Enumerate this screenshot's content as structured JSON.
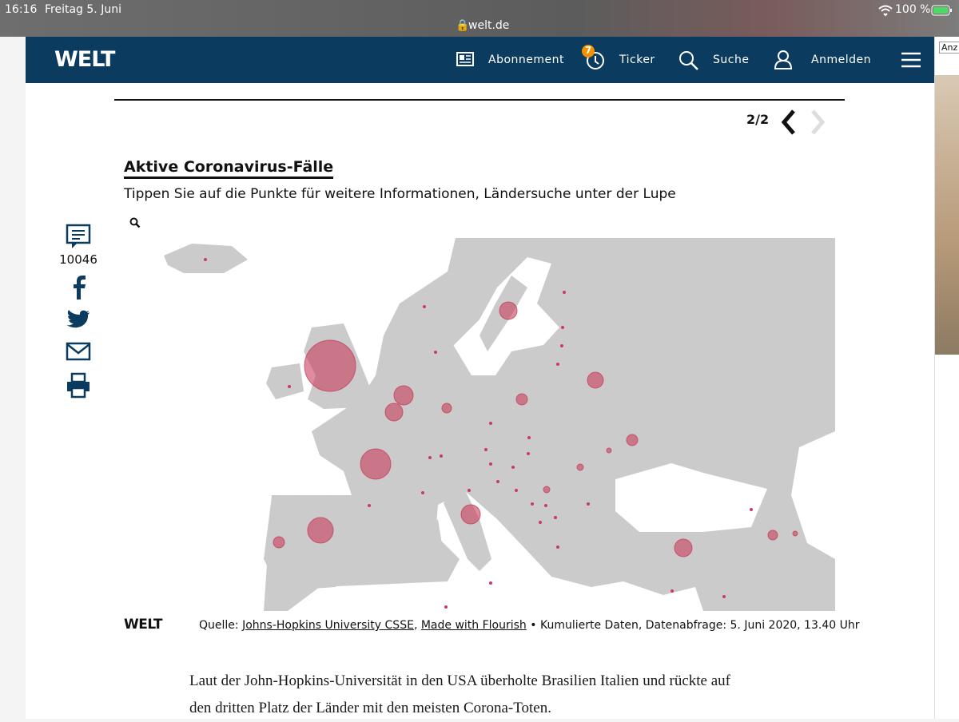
{
  "status_bar": {
    "time": "16:16",
    "date": "Freitag 5. Juni",
    "url": "welt.de",
    "battery": "100 %"
  },
  "nav": {
    "logo": "WELT",
    "items": [
      "Abonnement",
      "Ticker",
      "Suche",
      "Anmelden"
    ],
    "ticker_badge": "7"
  },
  "pager": "2/2",
  "social": {
    "comment_count": 10046
  },
  "chart": {
    "title": "Aktive Coronavirus-Fälle",
    "subtitle": "Tippen Sie auf die Punkte für weitere Informationen, Ländersuche unter der Lupe",
    "logo": "WELT",
    "source_prefix": "Quelle:",
    "source_links": [
      "Johns-Hopkins University CSSE",
      "Made with Flourish"
    ],
    "source_separator": ",",
    "source_note": "• Kumulierte Daten, Datenabfrage: 5. Juni 2020, 13.40 Uhr"
  },
  "article": {
    "paragraph": "Laut der John-Hopkins-Universität in den USA überholte Brasilien Italien und rückte auf den dritten Platz der Länder mit den meisten Corona-Toten."
  },
  "ad_label": "Anz"
}
